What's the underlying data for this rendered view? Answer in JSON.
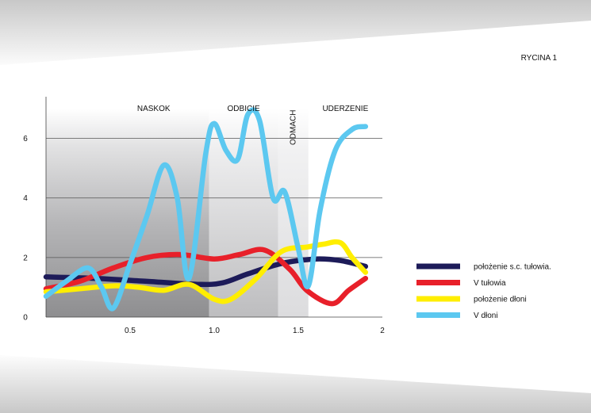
{
  "figure_label": "RYCINA 1",
  "chart_data": {
    "type": "line",
    "xlim": [
      0,
      2
    ],
    "ylim": [
      0,
      7.4
    ],
    "x_ticks": [
      {
        "value": 0.5,
        "label": "0.5"
      },
      {
        "value": 1.0,
        "label": "1.0"
      },
      {
        "value": 1.5,
        "label": "1.5"
      },
      {
        "value": 2.0,
        "label": "2"
      }
    ],
    "y_ticks": [
      {
        "value": 0,
        "label": "0"
      },
      {
        "value": 2,
        "label": "2"
      },
      {
        "value": 4,
        "label": "4"
      },
      {
        "value": 6,
        "label": "6"
      }
    ],
    "grid": "horizontal",
    "legend_position": "right",
    "phases": [
      {
        "label": "NASKOK",
        "x_start": 0.0,
        "x_end": 0.97,
        "orientation": "horizontal",
        "fill": "#9a9a9c"
      },
      {
        "label": "ODBICIE",
        "x_start": 0.97,
        "x_end": 1.38,
        "orientation": "horizontal",
        "fill": "#c4c4c6"
      },
      {
        "label": "ODMACH",
        "x_start": 1.38,
        "x_end": 1.56,
        "orientation": "vertical",
        "fill": "#dedee0"
      },
      {
        "label": "UDERZENIE",
        "x_start": 1.56,
        "x_end": 2.0,
        "orientation": "horizontal",
        "fill": "none"
      }
    ],
    "series": [
      {
        "name": "położenie s.c. tułowia.",
        "color": "#1d1b59",
        "x": [
          0.0,
          0.3,
          0.6,
          0.9,
          1.05,
          1.2,
          1.4,
          1.6,
          1.75,
          1.9
        ],
        "y": [
          1.35,
          1.3,
          1.2,
          1.1,
          1.15,
          1.45,
          1.8,
          1.95,
          1.9,
          1.7
        ]
      },
      {
        "name": "V tułowia",
        "color": "#e8202a",
        "x": [
          0.0,
          0.2,
          0.4,
          0.6,
          0.8,
          1.0,
          1.15,
          1.3,
          1.45,
          1.55,
          1.7,
          1.8,
          1.9
        ],
        "y": [
          0.95,
          1.2,
          1.65,
          2.0,
          2.1,
          1.95,
          2.1,
          2.25,
          1.6,
          0.9,
          0.45,
          0.9,
          1.3
        ]
      },
      {
        "name": "położenie dłoni",
        "color": "#ffee00",
        "x": [
          0.0,
          0.2,
          0.4,
          0.55,
          0.7,
          0.85,
          1.0,
          1.1,
          1.25,
          1.4,
          1.55,
          1.65,
          1.75,
          1.82,
          1.9
        ],
        "y": [
          0.85,
          0.95,
          1.05,
          1.0,
          0.9,
          1.1,
          0.6,
          0.6,
          1.3,
          2.2,
          2.35,
          2.45,
          2.5,
          2.0,
          1.5
        ]
      },
      {
        "name": "V dłoni",
        "color": "#5cc8f0",
        "x": [
          0.0,
          0.12,
          0.25,
          0.33,
          0.4,
          0.5,
          0.6,
          0.7,
          0.78,
          0.85,
          0.95,
          1.0,
          1.07,
          1.14,
          1.2,
          1.27,
          1.35,
          1.42,
          1.5,
          1.56,
          1.63,
          1.72,
          1.82,
          1.9
        ],
        "y": [
          0.7,
          1.2,
          1.65,
          1.0,
          0.3,
          1.8,
          3.4,
          5.1,
          4.0,
          1.3,
          5.5,
          6.5,
          5.6,
          5.3,
          6.8,
          6.6,
          4.0,
          4.2,
          2.3,
          1.05,
          3.6,
          5.6,
          6.3,
          6.4
        ]
      }
    ]
  }
}
